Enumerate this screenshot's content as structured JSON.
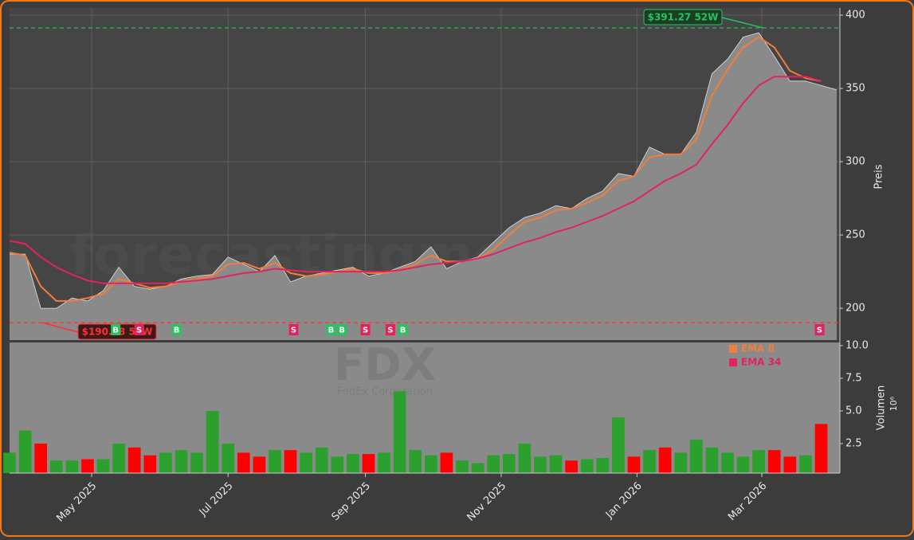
{
  "chart_data": [
    {
      "type": "area",
      "watermark": "forecastingme.trade",
      "ylabel": "Preis",
      "xlim": [
        0,
        53.2
      ],
      "xticks": [
        {
          "value": 5.26,
          "label": "May 2025"
        },
        {
          "value": 14.0,
          "label": "Jul 2025"
        },
        {
          "value": 22.8,
          "label": "Sep 2025"
        },
        {
          "value": 31.5,
          "label": "Nov 2025"
        },
        {
          "value": 40.2,
          "label": "Jan 2026"
        },
        {
          "value": 48.2,
          "label": "Mar 2026"
        }
      ],
      "ylim": [
        178.3,
        404.9
      ],
      "yticks": [
        200,
        250,
        300,
        350,
        400
      ],
      "grid": true,
      "series": [
        {
          "color": "#ffffff",
          "fill": "#8a8a8a",
          "values": [
            237,
            237,
            200,
            200,
            207,
            205,
            212,
            228,
            215,
            213,
            215,
            220,
            222,
            223,
            235,
            230,
            225,
            236,
            218,
            222,
            224,
            226,
            228,
            222,
            224,
            228,
            232,
            242,
            227,
            232,
            235,
            245,
            255,
            262,
            265,
            270,
            268,
            275,
            280,
            292,
            290,
            310,
            305,
            305,
            320,
            360,
            370,
            385,
            388,
            372,
            355,
            355,
            352,
            349
          ]
        },
        {
          "name": "EMA 8",
          "color": "#f07f3c",
          "values": [
            238,
            236,
            215,
            205,
            205,
            207,
            210,
            220,
            217,
            214,
            215,
            218,
            220,
            222,
            230,
            231,
            227,
            231,
            224,
            222,
            223,
            225,
            227,
            224,
            224,
            226,
            230,
            236,
            232,
            232,
            234,
            240,
            250,
            259,
            262,
            267,
            268,
            272,
            277,
            287,
            290,
            303,
            305,
            305,
            315,
            345,
            363,
            378,
            385,
            378,
            362,
            357,
            355,
            null
          ]
        },
        {
          "name": "EMA 34",
          "color": "#e0245e",
          "values": [
            246,
            244,
            235,
            228,
            223,
            219,
            217,
            217,
            217,
            217,
            217,
            218,
            219,
            220,
            222,
            224,
            225,
            227,
            226,
            225,
            225,
            225,
            225,
            225,
            225,
            226,
            228,
            230,
            231,
            232,
            234,
            237,
            241,
            245,
            248,
            252,
            255,
            259,
            263,
            268,
            273,
            280,
            287,
            292,
            298,
            312,
            325,
            340,
            352,
            358,
            358,
            358,
            355,
            null
          ]
        }
      ],
      "annotations": [
        {
          "text": "$391.27 52W",
          "value": 391.27,
          "x": 48.3,
          "color": "#22c55e"
        },
        {
          "text": "$190.18 52W",
          "value": 190.18,
          "x": 2.1,
          "color": "#ff3030"
        }
      ],
      "signals": [
        {
          "x": 6.8,
          "label": "B"
        },
        {
          "x": 8.3,
          "label": "S"
        },
        {
          "x": 10.7,
          "label": "B"
        },
        {
          "x": 18.2,
          "label": "S"
        },
        {
          "x": 20.6,
          "label": "B"
        },
        {
          "x": 21.3,
          "label": "B"
        },
        {
          "x": 22.8,
          "label": "S"
        },
        {
          "x": 24.4,
          "label": "S"
        },
        {
          "x": 25.2,
          "label": "B"
        },
        {
          "x": 51.9,
          "label": "S"
        }
      ],
      "signal_colors": {
        "B": "#22c55e",
        "S": "#e8205a"
      }
    },
    {
      "type": "bar",
      "watermark": "FDX",
      "subtitle": "FedEx Corporation",
      "ylabel": "Volumen",
      "exponent": "10⁶",
      "ylim": [
        0.24,
        10.24
      ],
      "yticks": [
        2.5,
        {
          "value": 5,
          "label": "5.0"
        },
        7.5,
        {
          "value": 10,
          "label": "10.0"
        }
      ],
      "up_color": "#2ca02c",
      "down_color": "#ff0000",
      "values": [
        1.8,
        3.5,
        2.5,
        1.2,
        1.2,
        1.3,
        1.3,
        2.5,
        2.2,
        1.6,
        1.8,
        2.0,
        1.8,
        5.0,
        2.5,
        1.8,
        1.5,
        2.0,
        2.0,
        1.8,
        2.2,
        1.5,
        1.7,
        1.7,
        1.8,
        6.5,
        2.0,
        1.6,
        1.8,
        1.2,
        1.0,
        1.6,
        1.7,
        2.5,
        1.5,
        1.6,
        1.2,
        1.3,
        1.4,
        4.5,
        1.5,
        2.0,
        2.2,
        1.8,
        2.8,
        2.2,
        1.8,
        1.5,
        2.0,
        2.0,
        1.5,
        1.6,
        4.0,
        null
      ]
    }
  ]
}
